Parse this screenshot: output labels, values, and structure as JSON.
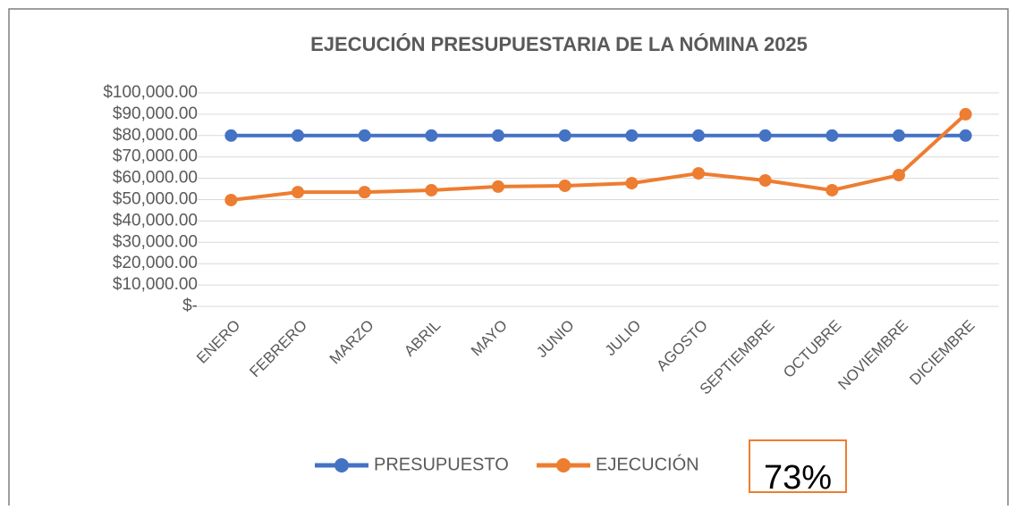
{
  "chart_data": {
    "type": "line",
    "title": "EJECUCIÓN PRESUPUESTARIA DE LA NÓMINA 2025",
    "categories": [
      "ENERO",
      "FEBRERO",
      "MARZO",
      "ABRIL",
      "MAYO",
      "JUNIO",
      "JULIO",
      "AGOSTO",
      "SEPTIEMBRE",
      "OCTUBRE",
      "NOVIEMBRE",
      "DICIEMBRE"
    ],
    "series": [
      {
        "name": "PRESUPUESTO",
        "color": "#4472c4",
        "values": [
          80000,
          80000,
          80000,
          80000,
          80000,
          80000,
          80000,
          80000,
          80000,
          80000,
          80000,
          80000
        ]
      },
      {
        "name": "EJECUCIÓN",
        "color": "#ed7d31",
        "values": [
          49800,
          53500,
          53500,
          54400,
          56100,
          56500,
          57700,
          62300,
          59000,
          54400,
          61500,
          90000
        ]
      }
    ],
    "ylim": [
      0,
      100000
    ],
    "yticks": [
      {
        "value": 0,
        "label": "$-"
      },
      {
        "value": 10000,
        "label": "$10,000.00"
      },
      {
        "value": 20000,
        "label": "$20,000.00"
      },
      {
        "value": 30000,
        "label": "$30,000.00"
      },
      {
        "value": 40000,
        "label": "$40,000.00"
      },
      {
        "value": 50000,
        "label": "$50,000.00"
      },
      {
        "value": 60000,
        "label": "$60,000.00"
      },
      {
        "value": 70000,
        "label": "$70,000.00"
      },
      {
        "value": 80000,
        "label": "$80,000.00"
      },
      {
        "value": 90000,
        "label": "$90,000.00"
      },
      {
        "value": 100000,
        "label": "$100,000.00"
      }
    ],
    "grid": true,
    "legend": "bottom",
    "annotation": "73%"
  }
}
